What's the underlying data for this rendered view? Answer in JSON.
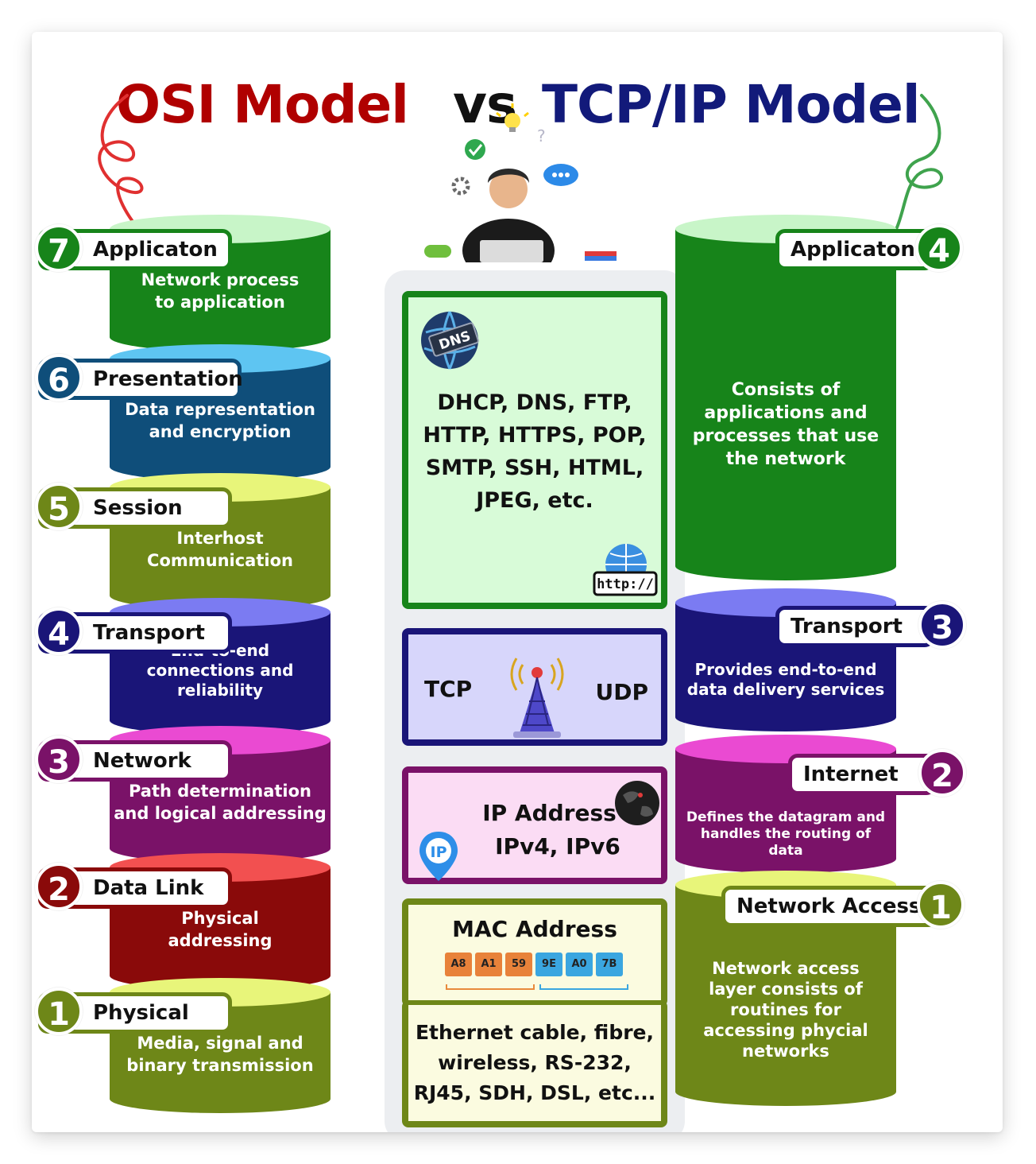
{
  "title": {
    "osi": "OSI Model",
    "vs": "vs",
    "tcpip": "TCP/IP Model"
  },
  "osi_layers": [
    {
      "number": "7",
      "name": "Applicaton",
      "description": "Network process\nto application",
      "color": "#17841a",
      "top_color": "#c8f5c8"
    },
    {
      "number": "6",
      "name": "Presentation",
      "description": "Data representation\nand encryption",
      "color": "#0f4e7a",
      "top_color": "#5ec5f2"
    },
    {
      "number": "5",
      "name": "Session",
      "description": "Interhost\nCommunication",
      "color": "#6e8718",
      "top_color": "#e8f57a"
    },
    {
      "number": "4",
      "name": "Transport",
      "description": "End-to-end\nconnections and\nreliability",
      "color": "#1a1578",
      "top_color": "#7b7bf2"
    },
    {
      "number": "3",
      "name": "Network",
      "description": "Path determination\nand logical addressing",
      "color": "#7a1268",
      "top_color": "#ea4ad2"
    },
    {
      "number": "2",
      "name": "Data Link",
      "description": "Physical\naddressing",
      "color": "#8a0a0a",
      "top_color": "#f25050"
    },
    {
      "number": "1",
      "name": "Physical",
      "description": "Media, signal and\nbinary transmission",
      "color": "#6e8718",
      "top_color": "#e8f57a"
    }
  ],
  "tcpip_layers": [
    {
      "number": "4",
      "name": "Applicaton",
      "description": "Consists of\napplications and\nprocesses that use\nthe network",
      "color": "#17841a",
      "top_color": "#c8f5c8"
    },
    {
      "number": "3",
      "name": "Transport",
      "description": "Provides end-to-end\ndata delivery services",
      "color": "#1a1578",
      "top_color": "#7b7bf2"
    },
    {
      "number": "2",
      "name": "Internet",
      "description": "Defines the datagram and\nhandles the routing of\ndata",
      "color": "#7a1268",
      "top_color": "#ea4ad2"
    },
    {
      "number": "1",
      "name": "Network Access",
      "description": "Network access\nlayer consists of\nroutines for\naccessing phycial\nnetworks",
      "color": "#6e8718",
      "top_color": "#e8f57a"
    }
  ],
  "center": {
    "application": {
      "protocols": "DHCP, DNS, FTP,\nHTTP, HTTPS, POP,\nSMTP, SSH, HTML,\nJPEG, etc.",
      "dns_label": "DNS",
      "http_label": "http://",
      "border": "#17841a",
      "fill": "#d8fbd8"
    },
    "transport": {
      "left": "TCP",
      "right": "UDP",
      "border": "#1a1578",
      "fill": "#d7d6fb"
    },
    "network": {
      "text": "IP Address :\nIPv4, IPv6",
      "ip_label": "IP",
      "border": "#7a1268",
      "fill": "#fbdcf4"
    },
    "datalink": {
      "title": "MAC Address",
      "bytes": [
        "A8",
        "A1",
        "59",
        "9E",
        "A0",
        "7B"
      ],
      "border": "#6e8718",
      "fill": "#fbfbe0"
    },
    "physical": {
      "text": "Ethernet cable, fibre,\nwireless, RS-232,\nRJ45, SDH, DSL, etc...",
      "border": "#6e8718",
      "fill": "#fbfbe0"
    }
  },
  "icons": [
    "dns-globe-icon",
    "http-globe-icon",
    "antenna-tower-icon",
    "ip-pin-icon",
    "earth-icon",
    "lightbulb-icon",
    "check-icon",
    "gear-icon",
    "chat-icon",
    "person-laptop-icon"
  ]
}
